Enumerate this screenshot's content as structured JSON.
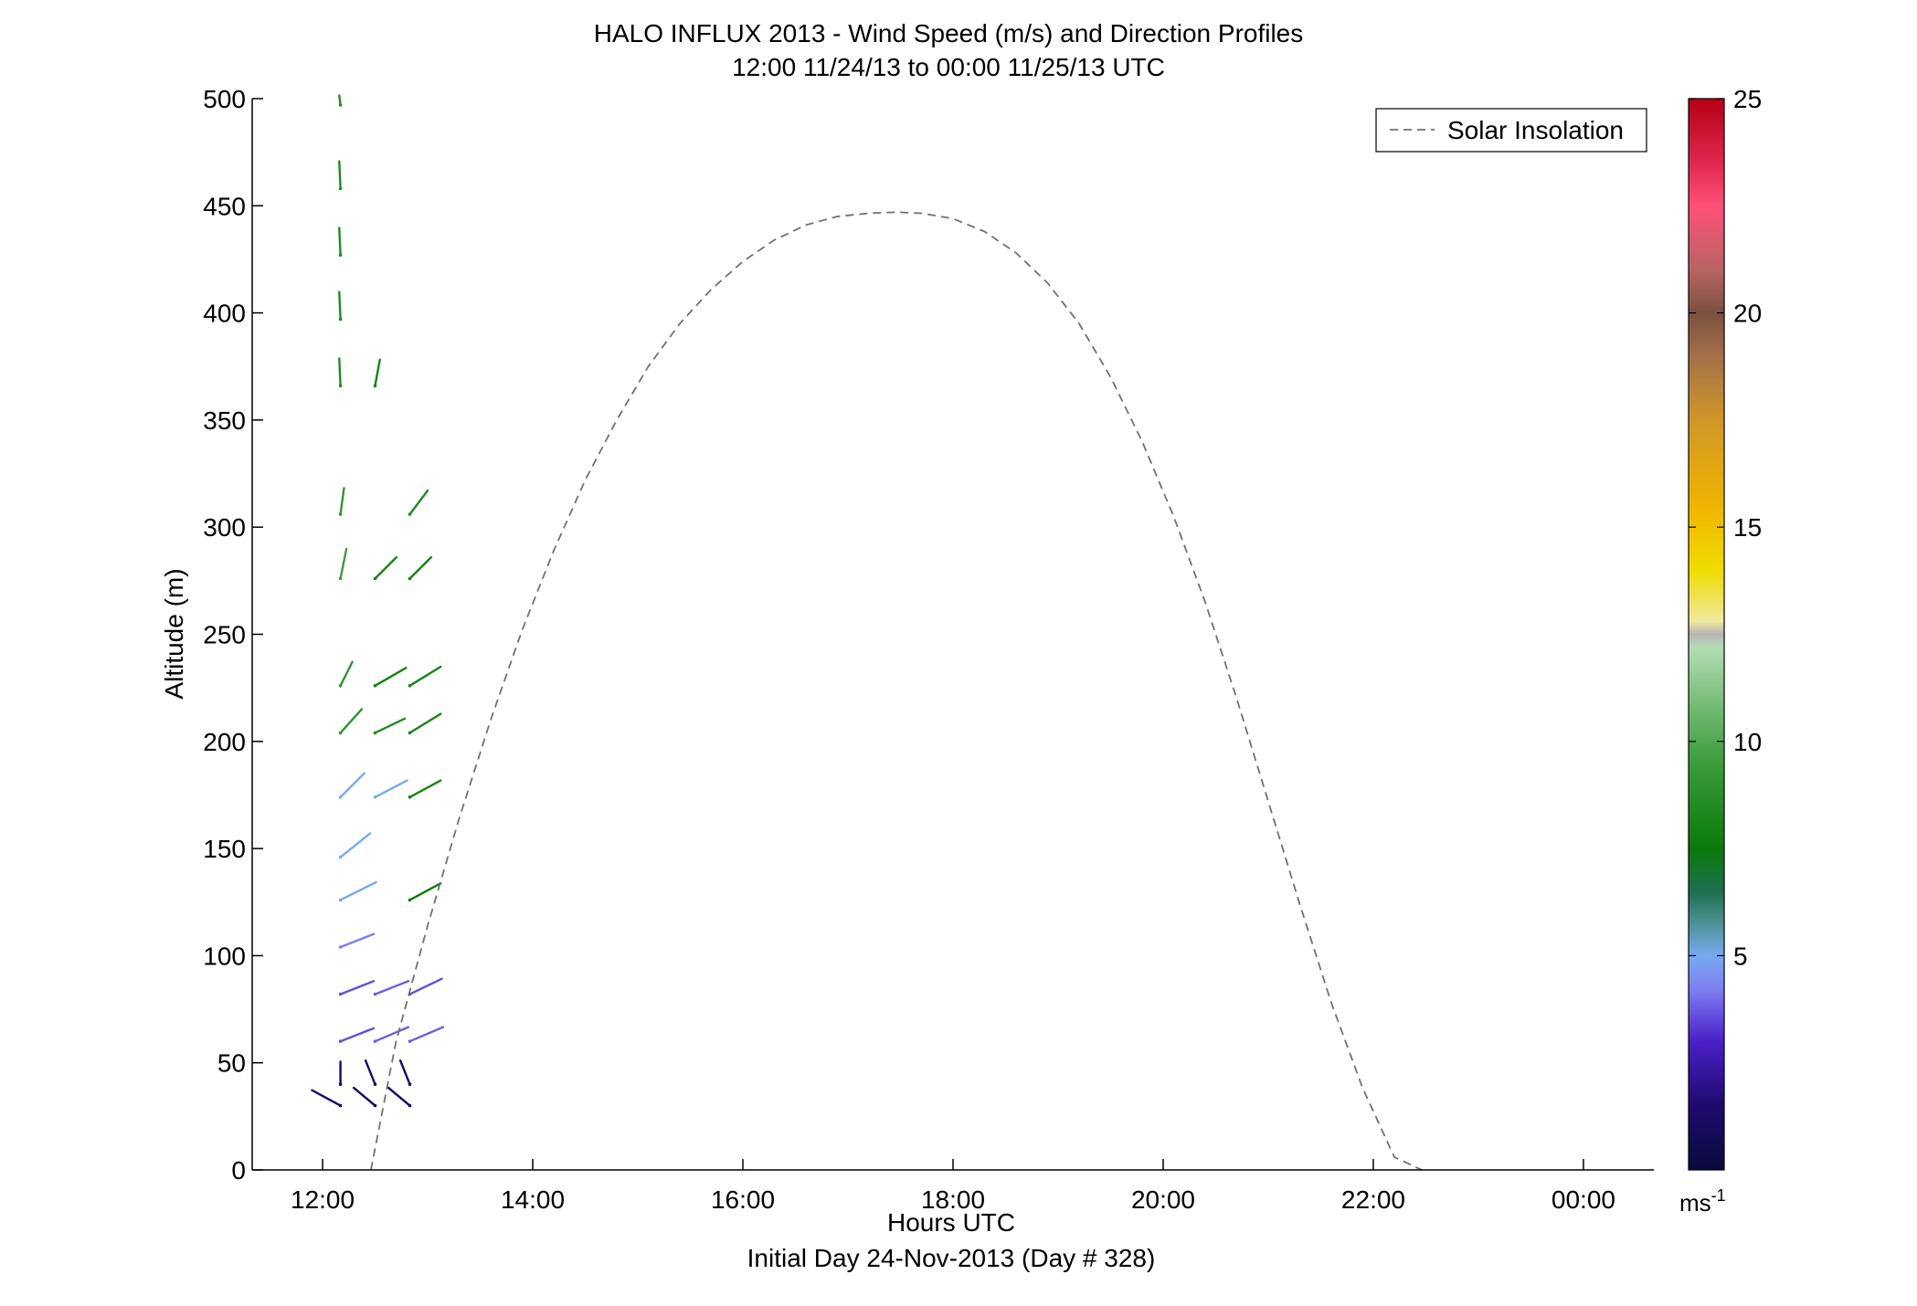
{
  "chart_data": {
    "type": "scatter",
    "subtype": "wind-barb-profile",
    "title": "HALO INFLUX 2013 - Wind Speed (m/s) and Direction Profiles",
    "subtitle": "12:00 11/24/13 to 00:00 11/25/13  UTC",
    "xlabel": "Hours UTC",
    "xlabel2": "Initial Day 24-Nov-2013 (Day # 328)",
    "ylabel": "Altitude (m)",
    "x_tick_labels": [
      "12:00",
      "14:00",
      "16:00",
      "18:00",
      "20:00",
      "22:00",
      "00:00"
    ],
    "x_ticks": [
      12,
      14,
      16,
      18,
      20,
      22,
      24
    ],
    "xlim": [
      11.33,
      24.67
    ],
    "y_ticks": [
      0,
      50,
      100,
      150,
      200,
      250,
      300,
      350,
      400,
      450,
      500
    ],
    "y_tick_labels": [
      "0",
      "50",
      "100",
      "150",
      "200",
      "250",
      "300",
      "350",
      "400",
      "450",
      "500"
    ],
    "ylim": [
      0,
      500
    ],
    "grid": false,
    "legend": {
      "position": "top-right",
      "entries": [
        {
          "label": "Solar Insolation",
          "style": "dashed",
          "color": "#707070"
        }
      ]
    },
    "colorbar": {
      "range": [
        0,
        25
      ],
      "tick_labels": [
        "5",
        "10",
        "15",
        "20",
        "25"
      ],
      "ticks": [
        5,
        10,
        15,
        20,
        25
      ],
      "unit": "ms",
      "unit_exponent": "-1",
      "stops": [
        {
          "v": 0,
          "c": "#0a0a3c"
        },
        {
          "v": 1.5,
          "c": "#1e0a6e"
        },
        {
          "v": 3,
          "c": "#4a20c8"
        },
        {
          "v": 4.2,
          "c": "#7e7ef0"
        },
        {
          "v": 5,
          "c": "#78aaf0"
        },
        {
          "v": 5.8,
          "c": "#4a9090"
        },
        {
          "v": 6.5,
          "c": "#1e6e50"
        },
        {
          "v": 7.5,
          "c": "#0a7a0a"
        },
        {
          "v": 9.5,
          "c": "#3c9c3c"
        },
        {
          "v": 11,
          "c": "#7cc07c"
        },
        {
          "v": 12.2,
          "c": "#b4dcb4"
        },
        {
          "v": 12.5,
          "c": "#b4b4b4"
        },
        {
          "v": 12.8,
          "c": "#f0e8a0"
        },
        {
          "v": 14,
          "c": "#f0dc00"
        },
        {
          "v": 15.5,
          "c": "#f0b400"
        },
        {
          "v": 17.5,
          "c": "#d09628"
        },
        {
          "v": 19,
          "c": "#a47048"
        },
        {
          "v": 20,
          "c": "#7c5040"
        },
        {
          "v": 21,
          "c": "#b86464"
        },
        {
          "v": 22.5,
          "c": "#ff5078"
        },
        {
          "v": 23.5,
          "c": "#e02850"
        },
        {
          "v": 25,
          "c": "#b40014"
        }
      ]
    },
    "solar_insolation_curve": {
      "x": [
        12.46,
        12.7,
        13.0,
        13.3,
        13.6,
        13.9,
        14.2,
        14.5,
        14.8,
        15.1,
        15.4,
        15.7,
        16.0,
        16.3,
        16.6,
        16.9,
        17.2,
        17.46,
        17.7,
        18.0,
        18.3,
        18.6,
        18.9,
        19.2,
        19.5,
        19.8,
        20.1,
        20.4,
        20.7,
        21.0,
        21.3,
        21.6,
        21.9,
        22.2,
        22.46
      ],
      "y": [
        0,
        60,
        114,
        164,
        210,
        252,
        289,
        322,
        350,
        375,
        395,
        411,
        424,
        434,
        441,
        445,
        446.5,
        447,
        446.5,
        444,
        438,
        428,
        414,
        395,
        370,
        340,
        305,
        265,
        220,
        172,
        124,
        78,
        38,
        6,
        0
      ],
      "ymax": 447
    },
    "profiles": [
      {
        "t": 12.17,
        "vectors": [
          {
            "alt": 30,
            "u": 2.4,
            "v": 1.3,
            "spd": 1.2
          },
          {
            "alt": 40,
            "u": 0.0,
            "v": 1.9,
            "spd": 1.0
          },
          {
            "alt": 60,
            "u": -2.8,
            "v": 1.1,
            "spd": 3.6
          },
          {
            "alt": 82,
            "u": -2.8,
            "v": 1.1,
            "spd": 3.6
          },
          {
            "alt": 104,
            "u": -2.8,
            "v": 1.1,
            "spd": 4.2
          },
          {
            "alt": 126,
            "u": -3.0,
            "v": 1.5,
            "spd": 4.9
          },
          {
            "alt": 146,
            "u": -2.5,
            "v": 2.0,
            "spd": 5.0
          },
          {
            "alt": 174,
            "u": -2.0,
            "v": 2.0,
            "spd": 5.0
          },
          {
            "alt": 204,
            "u": -1.8,
            "v": 2.0,
            "spd": 9.0
          },
          {
            "alt": 226,
            "u": -1.0,
            "v": 2.0,
            "spd": 9.0
          },
          {
            "alt": 276,
            "u": -0.5,
            "v": 2.5,
            "spd": 9.5
          },
          {
            "alt": 306,
            "u": -0.3,
            "v": 2.2,
            "spd": 9.0
          },
          {
            "alt": 366,
            "u": 0.1,
            "v": 2.3,
            "spd": 8.5
          },
          {
            "alt": 397,
            "u": 0.1,
            "v": 2.3,
            "spd": 8.5
          },
          {
            "alt": 427,
            "u": 0.1,
            "v": 2.3,
            "spd": 8.5
          },
          {
            "alt": 458,
            "u": 0.1,
            "v": 2.3,
            "spd": 8.5
          },
          {
            "alt": 497,
            "u": 0.1,
            "v": 0.8,
            "spd": 8.5
          }
        ]
      },
      {
        "t": 12.5,
        "vectors": [
          {
            "alt": 30,
            "u": 1.8,
            "v": 1.5,
            "spd": 1.0
          },
          {
            "alt": 40,
            "u": 0.8,
            "v": 2.0,
            "spd": 1.0
          },
          {
            "alt": 60,
            "u": -2.8,
            "v": 1.2,
            "spd": 3.8
          },
          {
            "alt": 82,
            "u": -2.8,
            "v": 1.1,
            "spd": 3.8
          },
          {
            "alt": 174,
            "u": -2.7,
            "v": 1.4,
            "spd": 5.0
          },
          {
            "alt": 204,
            "u": -2.5,
            "v": 1.2,
            "spd": 8.5
          },
          {
            "alt": 226,
            "u": -2.6,
            "v": 1.5,
            "spd": 8.0
          },
          {
            "alt": 276,
            "u": -1.8,
            "v": 1.8,
            "spd": 8.0
          },
          {
            "alt": 366,
            "u": -0.4,
            "v": 2.2,
            "spd": 8.0
          }
        ]
      },
      {
        "t": 12.83,
        "vectors": [
          {
            "alt": 30,
            "u": 1.8,
            "v": 1.5,
            "spd": 1.0
          },
          {
            "alt": 40,
            "u": 0.8,
            "v": 2.0,
            "spd": 1.0
          },
          {
            "alt": 60,
            "u": -2.8,
            "v": 1.2,
            "spd": 3.8
          },
          {
            "alt": 82,
            "u": -2.7,
            "v": 1.3,
            "spd": 3.6
          },
          {
            "alt": 126,
            "u": -2.6,
            "v": 1.4,
            "spd": 7.5
          },
          {
            "alt": 174,
            "u": -2.6,
            "v": 1.4,
            "spd": 8.0
          },
          {
            "alt": 204,
            "u": -2.6,
            "v": 1.6,
            "spd": 8.0
          },
          {
            "alt": 226,
            "u": -2.6,
            "v": 1.6,
            "spd": 8.0
          },
          {
            "alt": 276,
            "u": -1.8,
            "v": 1.8,
            "spd": 8.0
          },
          {
            "alt": 306,
            "u": -1.5,
            "v": 2.0,
            "spd": 8.5
          }
        ]
      }
    ]
  }
}
